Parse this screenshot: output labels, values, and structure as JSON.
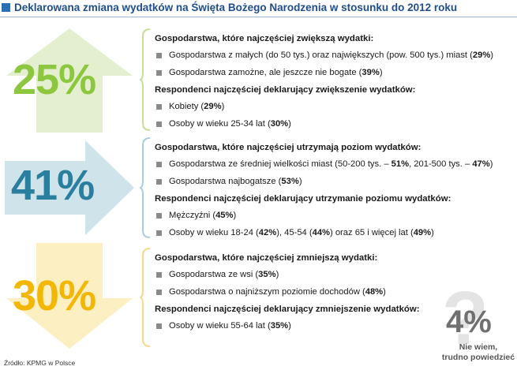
{
  "title": "Deklarowana zmiana wydatków na Święta Bożego Narodzenia w stosunku do 2012 roku",
  "colors": {
    "increase": "#8dc63f",
    "keep": "#2a7f9e",
    "decrease": "#f2b705",
    "dontknow": "#707070"
  },
  "sections": [
    {
      "pct": "25%",
      "direction": "up",
      "heading1": "Gospodarstwa, które najczęściej zwiększą wydatki:",
      "items1": [
        {
          "text": "Gospodarstwa z małych (do 50 tys.) oraz największych (pow. 500 tys.) miast (",
          "val": "29%",
          "end": ")"
        },
        {
          "text": "Gospodarstwa zamożne, ale jeszcze nie bogate (",
          "val": "39%",
          "end": ")"
        }
      ],
      "heading2": "Respondenci najczęściej deklarujący zwiększenie wydatków:",
      "items2": [
        {
          "text": "Kobiety (",
          "val": "29%",
          "end": ")"
        },
        {
          "text": "Osoby w wieku 25-34 lat (",
          "val": "30%",
          "end": ")"
        }
      ]
    },
    {
      "pct": "41%",
      "direction": "right",
      "heading1": "Gospodarstwa, które najczęściej utrzymają poziom wydatków:",
      "items1": [
        {
          "text": "Gospodarstwa ze średniej wielkości miast (50-200 tys. – ",
          "val": "51%",
          "mid": ", 201-500 tys. – ",
          "val2": "47%",
          "end": ")"
        },
        {
          "text": "Gospodarstwa najbogatsze (",
          "val": "53%",
          "end": ")"
        }
      ],
      "heading2": "Respondenci najczęściej deklarujący utrzymanie poziomu wydatków:",
      "items2": [
        {
          "text": "Mężczyźni (",
          "val": "45%",
          "end": ")"
        },
        {
          "text": "Osoby w wieku 18-24 (",
          "val": "42%",
          "mid": "), 45-54 (",
          "val2": "44%",
          "mid2": ") oraz 65 i więcej lat (",
          "val3": "49%",
          "end": ")"
        }
      ]
    },
    {
      "pct": "30%",
      "direction": "down",
      "heading1": "Gospodarstwa, które najczęściej zmniejszą wydatki:",
      "items1": [
        {
          "text": "Gospodarstwa ze wsi (",
          "val": "35%",
          "end": ")"
        },
        {
          "text": "Gospodarstwa o najniższym poziomie dochodów (",
          "val": "48%",
          "end": ")"
        }
      ],
      "heading2": "Respondenci najczęściej deklarujący zmniejszenie wydatków:",
      "items2": [
        {
          "text": "Osoby w wieku 55-64 lat (",
          "val": "35%",
          "end": ")"
        }
      ]
    }
  ],
  "dont_know": {
    "pct": "4%",
    "line1": "Nie wiem,",
    "line2": "trudno powiedzieć",
    "symbol": "?"
  },
  "source": "Źródło: KPMG w Polsce"
}
